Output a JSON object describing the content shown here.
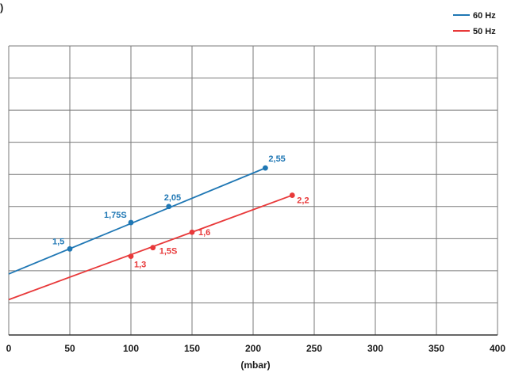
{
  "panel_letter": ")",
  "chart_data": {
    "type": "line",
    "title": "",
    "xlabel": "(mbar)",
    "ylabel": "",
    "xlim": [
      0,
      400
    ],
    "ylim": [
      0,
      9
    ],
    "x_ticks": [
      0,
      50,
      100,
      150,
      200,
      250,
      300,
      350,
      400
    ],
    "x_tick_labels": [
      "0",
      "50",
      "100",
      "150",
      "200",
      "250",
      "300",
      "350",
      "400"
    ],
    "grid": true,
    "legend_position": "top-right",
    "series": [
      {
        "name": "60 Hz",
        "color": "#1f77b4",
        "line_x": [
          0,
          210
        ],
        "line_y": [
          1.9,
          5.2
        ],
        "points": [
          {
            "x": 50,
            "y": 2.68,
            "label": "1,5"
          },
          {
            "x": 100,
            "y": 3.5,
            "label": "1,75S"
          },
          {
            "x": 131,
            "y": 4.0,
            "label": "2,05"
          },
          {
            "x": 210,
            "y": 5.2,
            "label": "2,55"
          }
        ]
      },
      {
        "name": "50 Hz",
        "color": "#e8393a",
        "line_x": [
          0,
          232
        ],
        "line_y": [
          1.1,
          4.35
        ],
        "points": [
          {
            "x": 100,
            "y": 2.45,
            "label": "1,3"
          },
          {
            "x": 118,
            "y": 2.72,
            "label": "1,5S"
          },
          {
            "x": 150,
            "y": 3.2,
            "label": "1,6"
          },
          {
            "x": 232,
            "y": 4.35,
            "label": "2,2"
          }
        ]
      }
    ]
  }
}
